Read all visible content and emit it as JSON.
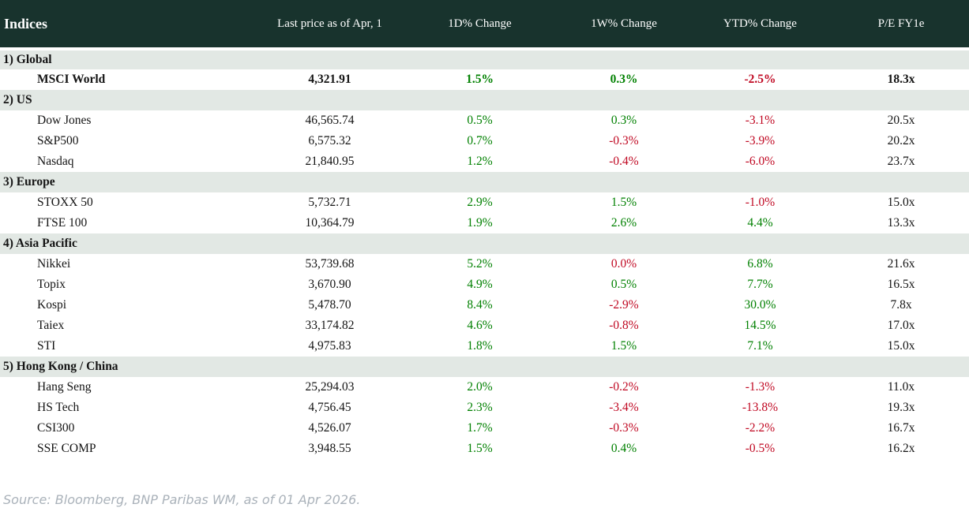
{
  "chart_data": {
    "type": "table",
    "title": "Indices",
    "columns": [
      "Last price as of Apr, 1",
      "1D% Change",
      "1W% Change",
      "YTD% Change",
      "P/E FY1e"
    ],
    "sections": [
      {
        "label": "1) Global",
        "rows": [
          {
            "name": "MSCI World",
            "bold": true,
            "price": "4,321.91",
            "changes": [
              {
                "v": "1.5%",
                "c": "pos"
              },
              {
                "v": "0.3%",
                "c": "pos"
              },
              {
                "v": "-2.5%",
                "c": "neg"
              }
            ],
            "pe": "18.3x"
          }
        ]
      },
      {
        "label": "2) US",
        "rows": [
          {
            "name": "Dow Jones",
            "bold": false,
            "price": "46,565.74",
            "changes": [
              {
                "v": "0.5%",
                "c": "pos"
              },
              {
                "v": "0.3%",
                "c": "pos"
              },
              {
                "v": "-3.1%",
                "c": "neg"
              }
            ],
            "pe": "20.5x"
          },
          {
            "name": "S&P500",
            "bold": false,
            "price": "6,575.32",
            "changes": [
              {
                "v": "0.7%",
                "c": "pos"
              },
              {
                "v": "-0.3%",
                "c": "neg"
              },
              {
                "v": "-3.9%",
                "c": "neg"
              }
            ],
            "pe": "20.2x"
          },
          {
            "name": "Nasdaq",
            "bold": false,
            "price": "21,840.95",
            "changes": [
              {
                "v": "1.2%",
                "c": "pos"
              },
              {
                "v": "-0.4%",
                "c": "neg"
              },
              {
                "v": "-6.0%",
                "c": "neg"
              }
            ],
            "pe": "23.7x"
          }
        ]
      },
      {
        "label": "3) Europe",
        "rows": [
          {
            "name": "STOXX 50",
            "bold": false,
            "price": "5,732.71",
            "changes": [
              {
                "v": "2.9%",
                "c": "pos"
              },
              {
                "v": "1.5%",
                "c": "pos"
              },
              {
                "v": "-1.0%",
                "c": "neg"
              }
            ],
            "pe": "15.0x"
          },
          {
            "name": "FTSE 100",
            "bold": false,
            "price": "10,364.79",
            "changes": [
              {
                "v": "1.9%",
                "c": "pos"
              },
              {
                "v": "2.6%",
                "c": "pos"
              },
              {
                "v": "4.4%",
                "c": "pos"
              }
            ],
            "pe": "13.3x"
          }
        ]
      },
      {
        "label": "4) Asia Pacific",
        "rows": [
          {
            "name": "Nikkei",
            "bold": false,
            "price": "53,739.68",
            "changes": [
              {
                "v": "5.2%",
                "c": "pos"
              },
              {
                "v": "0.0%",
                "c": "neg"
              },
              {
                "v": "6.8%",
                "c": "pos"
              }
            ],
            "pe": "21.6x"
          },
          {
            "name": "Topix",
            "bold": false,
            "price": "3,670.90",
            "changes": [
              {
                "v": "4.9%",
                "c": "pos"
              },
              {
                "v": "0.5%",
                "c": "pos"
              },
              {
                "v": "7.7%",
                "c": "pos"
              }
            ],
            "pe": "16.5x"
          },
          {
            "name": "Kospi",
            "bold": false,
            "price": "5,478.70",
            "changes": [
              {
                "v": "8.4%",
                "c": "pos"
              },
              {
                "v": "-2.9%",
                "c": "neg"
              },
              {
                "v": "30.0%",
                "c": "pos"
              }
            ],
            "pe": "7.8x"
          },
          {
            "name": "Taiex",
            "bold": false,
            "price": "33,174.82",
            "changes": [
              {
                "v": "4.6%",
                "c": "pos"
              },
              {
                "v": "-0.8%",
                "c": "neg"
              },
              {
                "v": "14.5%",
                "c": "pos"
              }
            ],
            "pe": "17.0x"
          },
          {
            "name": "STI",
            "bold": false,
            "price": "4,975.83",
            "changes": [
              {
                "v": "1.8%",
                "c": "pos"
              },
              {
                "v": "1.5%",
                "c": "pos"
              },
              {
                "v": "7.1%",
                "c": "pos"
              }
            ],
            "pe": "15.0x"
          }
        ]
      },
      {
        "label": "5) Hong Kong / China",
        "rows": [
          {
            "name": "Hang Seng",
            "bold": false,
            "price": "25,294.03",
            "changes": [
              {
                "v": "2.0%",
                "c": "pos"
              },
              {
                "v": "-0.2%",
                "c": "neg"
              },
              {
                "v": "-1.3%",
                "c": "neg"
              }
            ],
            "pe": "11.0x"
          },
          {
            "name": "HS Tech",
            "bold": false,
            "price": "4,756.45",
            "changes": [
              {
                "v": "2.3%",
                "c": "pos"
              },
              {
                "v": "-3.4%",
                "c": "neg"
              },
              {
                "v": "-13.8%",
                "c": "neg"
              }
            ],
            "pe": "19.3x"
          },
          {
            "name": "CSI300",
            "bold": false,
            "price": "4,526.07",
            "changes": [
              {
                "v": "1.7%",
                "c": "pos"
              },
              {
                "v": "-0.3%",
                "c": "neg"
              },
              {
                "v": "-2.2%",
                "c": "neg"
              }
            ],
            "pe": "16.7x"
          },
          {
            "name": "SSE COMP",
            "bold": false,
            "price": "3,948.55",
            "changes": [
              {
                "v": "1.5%",
                "c": "pos"
              },
              {
                "v": "0.4%",
                "c": "pos"
              },
              {
                "v": "-0.5%",
                "c": "neg"
              }
            ],
            "pe": "16.2x"
          }
        ]
      }
    ]
  },
  "footer": {
    "source": "Source: Bloomberg, BNP Paribas WM, as of 01 Apr 2026."
  },
  "colors": {
    "header_bg": "#18332d",
    "section_bg": "#e2e8e4",
    "positive": "#008000",
    "negative": "#c00822",
    "text": "#141414",
    "source_text": "#aab2ba"
  }
}
